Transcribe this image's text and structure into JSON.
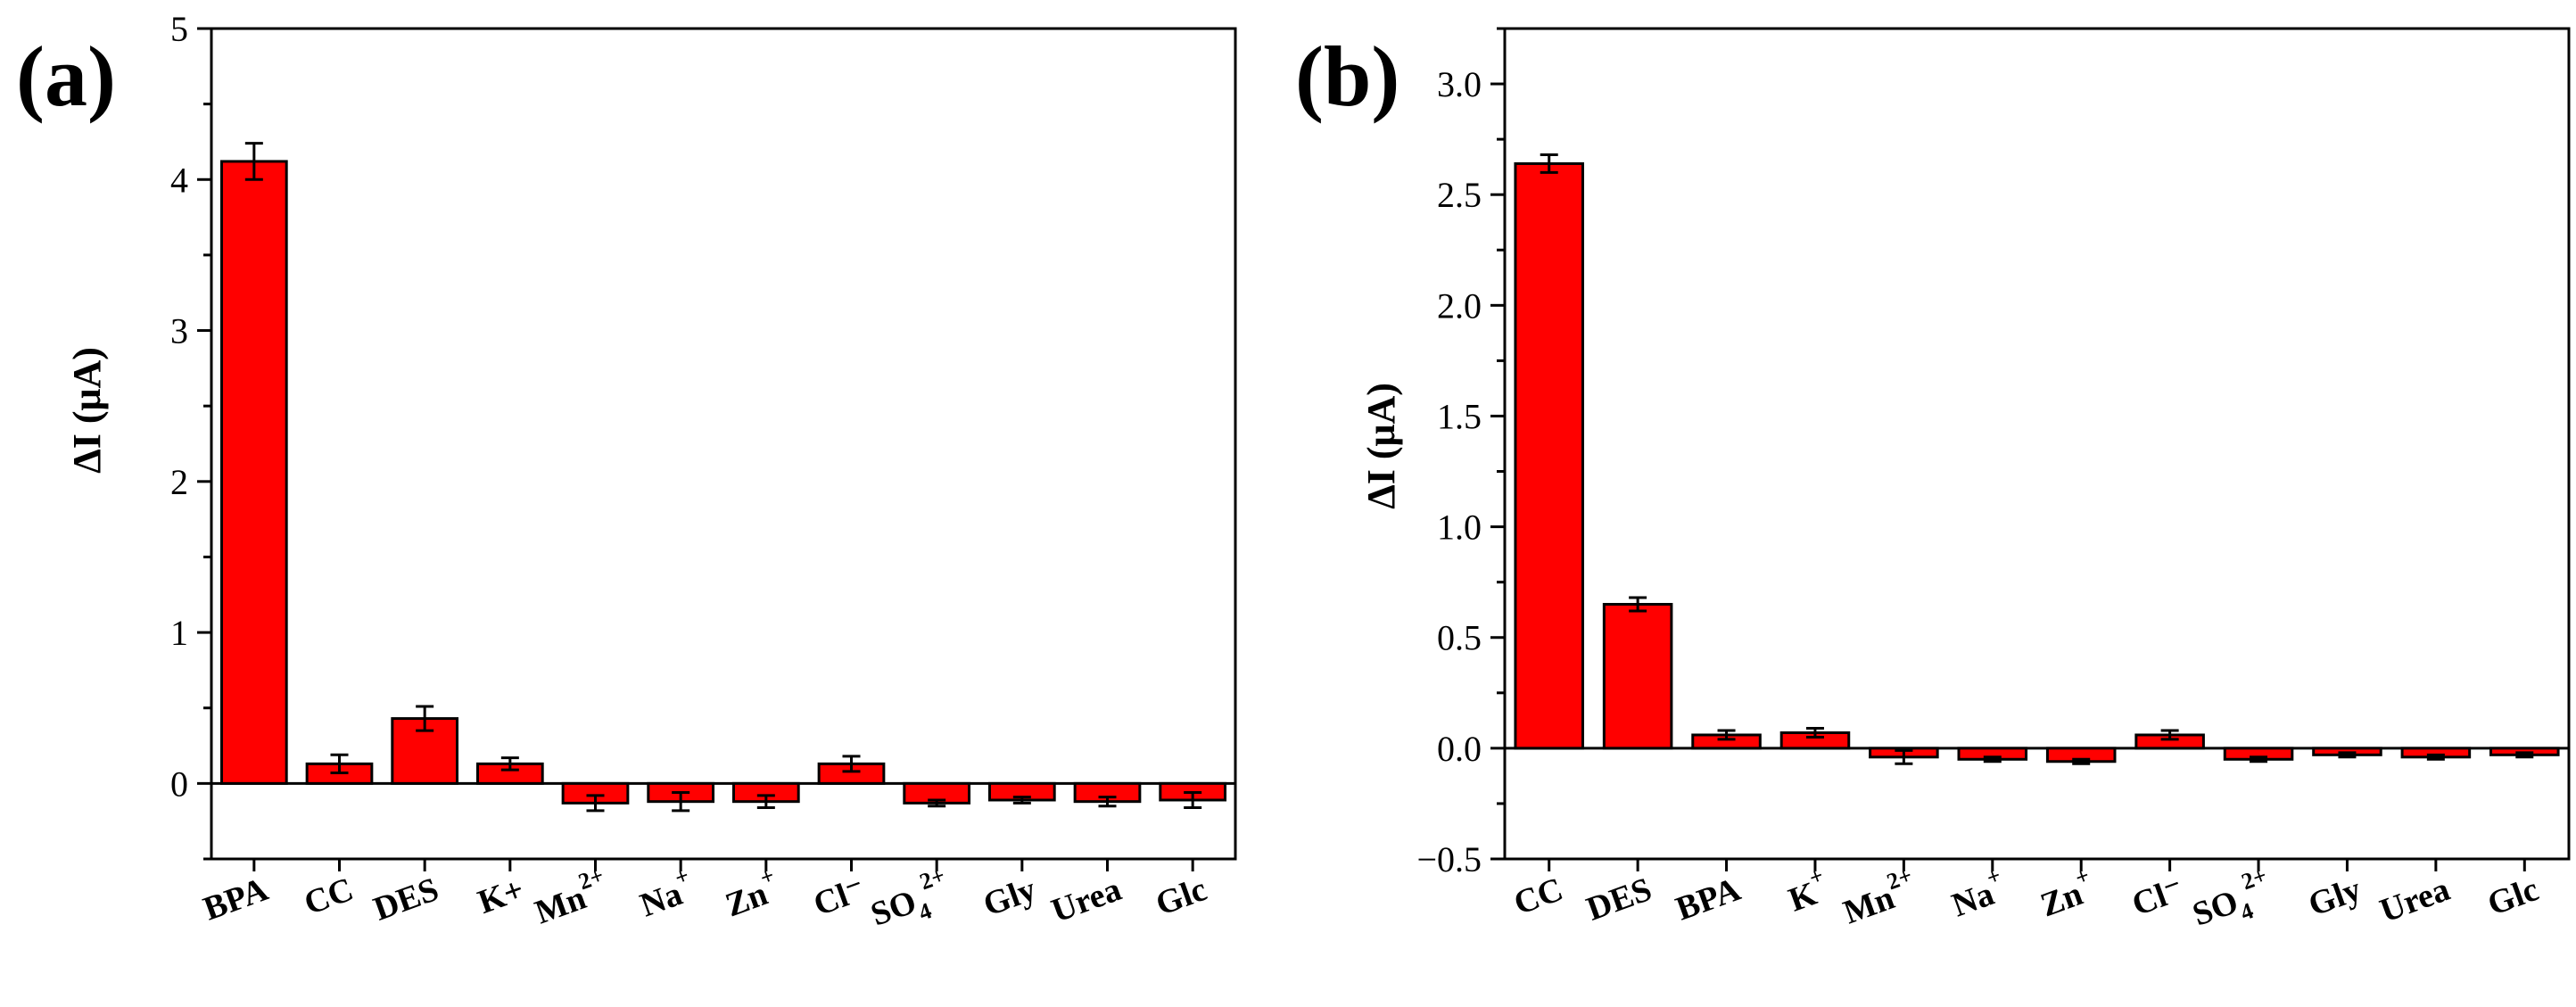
{
  "panels": [
    {
      "panel_label": "(a)",
      "chart_data": {
        "type": "bar",
        "title": "",
        "xlabel": "",
        "ylabel": "ΔI (μA)",
        "ylim": [
          -0.5,
          5
        ],
        "yticks": [
          0,
          1,
          2,
          3,
          4,
          5
        ],
        "ytick_labels": [
          "0",
          "1",
          "2",
          "3",
          "4",
          "5"
        ],
        "categories": [
          {
            "base": "BPA",
            "sub": "",
            "sup": ""
          },
          {
            "base": "CC",
            "sub": "",
            "sup": ""
          },
          {
            "base": "DES",
            "sub": "",
            "sup": ""
          },
          {
            "base": "K+",
            "sub": "",
            "sup": ""
          },
          {
            "base": "Mn",
            "sub": "",
            "sup": "2+"
          },
          {
            "base": "Na",
            "sub": "",
            "sup": "+"
          },
          {
            "base": "Zn",
            "sub": "",
            "sup": "+"
          },
          {
            "base": "Cl⁻",
            "sub": "",
            "sup": ""
          },
          {
            "base": "SO",
            "sub": "4",
            "sup": "2+"
          },
          {
            "base": "Gly",
            "sub": "",
            "sup": ""
          },
          {
            "base": "Urea",
            "sub": "",
            "sup": ""
          },
          {
            "base": "Glc",
            "sub": "",
            "sup": ""
          }
        ],
        "values": [
          4.12,
          0.13,
          0.43,
          0.13,
          -0.13,
          -0.12,
          -0.12,
          0.13,
          -0.13,
          -0.11,
          -0.12,
          -0.11
        ],
        "errors": [
          0.12,
          0.06,
          0.08,
          0.04,
          0.05,
          0.06,
          0.04,
          0.05,
          0.02,
          0.02,
          0.03,
          0.05
        ],
        "bar_color": "#ff0000",
        "grid": false
      }
    },
    {
      "panel_label": "(b)",
      "chart_data": {
        "type": "bar",
        "title": "",
        "xlabel": "",
        "ylabel": "ΔI (μA)",
        "ylim": [
          -0.5,
          3.25
        ],
        "yticks": [
          -0.5,
          0.0,
          0.5,
          1.0,
          1.5,
          2.0,
          2.5,
          3.0
        ],
        "ytick_labels": [
          "−0.5",
          "0.0",
          "0.5",
          "1.0",
          "1.5",
          "2.0",
          "2.5",
          "3.0"
        ],
        "categories": [
          {
            "base": "CC",
            "sub": "",
            "sup": ""
          },
          {
            "base": "DES",
            "sub": "",
            "sup": ""
          },
          {
            "base": "BPA",
            "sub": "",
            "sup": ""
          },
          {
            "base": "K",
            "sub": "",
            "sup": "+"
          },
          {
            "base": "Mn",
            "sub": "",
            "sup": "2+"
          },
          {
            "base": "Na",
            "sub": "",
            "sup": "+"
          },
          {
            "base": "Zn",
            "sub": "",
            "sup": "+"
          },
          {
            "base": "Cl⁻",
            "sub": "",
            "sup": ""
          },
          {
            "base": "SO",
            "sub": "4",
            "sup": "2+"
          },
          {
            "base": "Gly",
            "sub": "",
            "sup": ""
          },
          {
            "base": "Urea",
            "sub": "",
            "sup": ""
          },
          {
            "base": "Glc",
            "sub": "",
            "sup": ""
          }
        ],
        "values": [
          2.64,
          0.65,
          0.06,
          0.07,
          -0.04,
          -0.05,
          -0.06,
          0.06,
          -0.05,
          -0.03,
          -0.04,
          -0.03
        ],
        "errors": [
          0.04,
          0.03,
          0.02,
          0.02,
          0.03,
          0.01,
          0.01,
          0.02,
          0.01,
          0.01,
          0.01,
          0.01
        ],
        "bar_color": "#ff0000",
        "grid": false
      }
    }
  ]
}
